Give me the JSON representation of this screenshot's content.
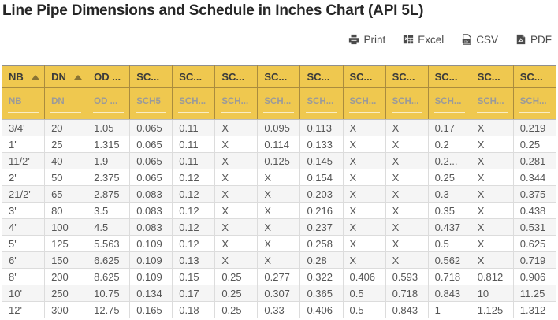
{
  "page": {
    "title": "Line Pipe Dimensions and Schedule in Inches Chart (API 5L)"
  },
  "toolbar": {
    "buttons": [
      {
        "label": "Print",
        "icon": "printer-icon"
      },
      {
        "label": "Excel",
        "icon": "excel-icon"
      },
      {
        "label": "CSV",
        "icon": "csv-icon"
      },
      {
        "label": "PDF",
        "icon": "pdf-icon"
      }
    ]
  },
  "table": {
    "columns": [
      {
        "label": "NB",
        "sorted": true
      },
      {
        "label": "DN",
        "sorted": true
      },
      {
        "label": "OD ...",
        "sorted": false
      },
      {
        "label": "SC...",
        "sorted": false
      },
      {
        "label": "SC...",
        "sorted": false
      },
      {
        "label": "SC...",
        "sorted": false
      },
      {
        "label": "SC...",
        "sorted": false
      },
      {
        "label": "SC...",
        "sorted": false
      },
      {
        "label": "SC...",
        "sorted": false
      },
      {
        "label": "SC...",
        "sorted": false
      },
      {
        "label": "SC...",
        "sorted": false
      },
      {
        "label": "SC...",
        "sorted": false
      },
      {
        "label": "SC...",
        "sorted": false
      }
    ],
    "filters": [
      "NB",
      "DN",
      "OD ...",
      "SCH5",
      "SCH...",
      "SCH...",
      "SCH...",
      "SCH...",
      "SCH...",
      "SCH...",
      "SCH...",
      "SCH...",
      "SCH..."
    ],
    "rows": [
      [
        "3/4'",
        "20",
        "1.05",
        "0.065",
        "0.11",
        "X",
        "0.095",
        "0.113",
        "X",
        "X",
        "0.17",
        "X",
        "0.219"
      ],
      [
        "1'",
        "25",
        "1.315",
        "0.065",
        "0.11",
        "X",
        "0.114",
        "0.133",
        "X",
        "X",
        "0.2",
        "X",
        "0.25"
      ],
      [
        "11/2'",
        "40",
        "1.9",
        "0.065",
        "0.11",
        "X",
        "0.125",
        "0.145",
        "X",
        "X",
        "0.2...",
        "X",
        "0.281"
      ],
      [
        "2'",
        "50",
        "2.375",
        "0.065",
        "0.12",
        "X",
        "X",
        "0.154",
        "X",
        "X",
        "0.25",
        "X",
        "0.344"
      ],
      [
        "21/2'",
        "65",
        "2.875",
        "0.083",
        "0.12",
        "X",
        "X",
        "0.203",
        "X",
        "X",
        "0.3",
        "X",
        "0.375"
      ],
      [
        "3'",
        "80",
        "3.5",
        "0.083",
        "0.12",
        "X",
        "X",
        "0.216",
        "X",
        "X",
        "0.35",
        "X",
        "0.438"
      ],
      [
        "4'",
        "100",
        "4.5",
        "0.083",
        "0.12",
        "X",
        "X",
        "0.237",
        "X",
        "X",
        "0.437",
        "X",
        "0.531"
      ],
      [
        "5'",
        "125",
        "5.563",
        "0.109",
        "0.12",
        "X",
        "X",
        "0.258",
        "X",
        "X",
        "0.5",
        "X",
        "0.625"
      ],
      [
        "6'",
        "150",
        "6.625",
        "0.109",
        "0.13",
        "X",
        "X",
        "0.28",
        "X",
        "X",
        "0.562",
        "X",
        "0.719"
      ],
      [
        "8'",
        "200",
        "8.625",
        "0.109",
        "0.15",
        "0.25",
        "0.277",
        "0.322",
        "0.406",
        "0.593",
        "0.718",
        "0.812",
        "0.906"
      ],
      [
        "10'",
        "250",
        "10.75",
        "0.134",
        "0.17",
        "0.25",
        "0.307",
        "0.365",
        "0.5",
        "0.718",
        "0.843",
        "10",
        "11.25"
      ],
      [
        "12'",
        "300",
        "12.75",
        "0.165",
        "0.18",
        "0.25",
        "0.33",
        "0.406",
        "0.5",
        "0.843",
        "1",
        "1.125",
        "1.312"
      ]
    ]
  },
  "colors": {
    "header_bg": "#efc84f",
    "header_border": "#aa8c3e",
    "row_stripe": "#f5f5f5",
    "cell_text": "#565656",
    "filter_placeholder": "#9a9a9a"
  }
}
